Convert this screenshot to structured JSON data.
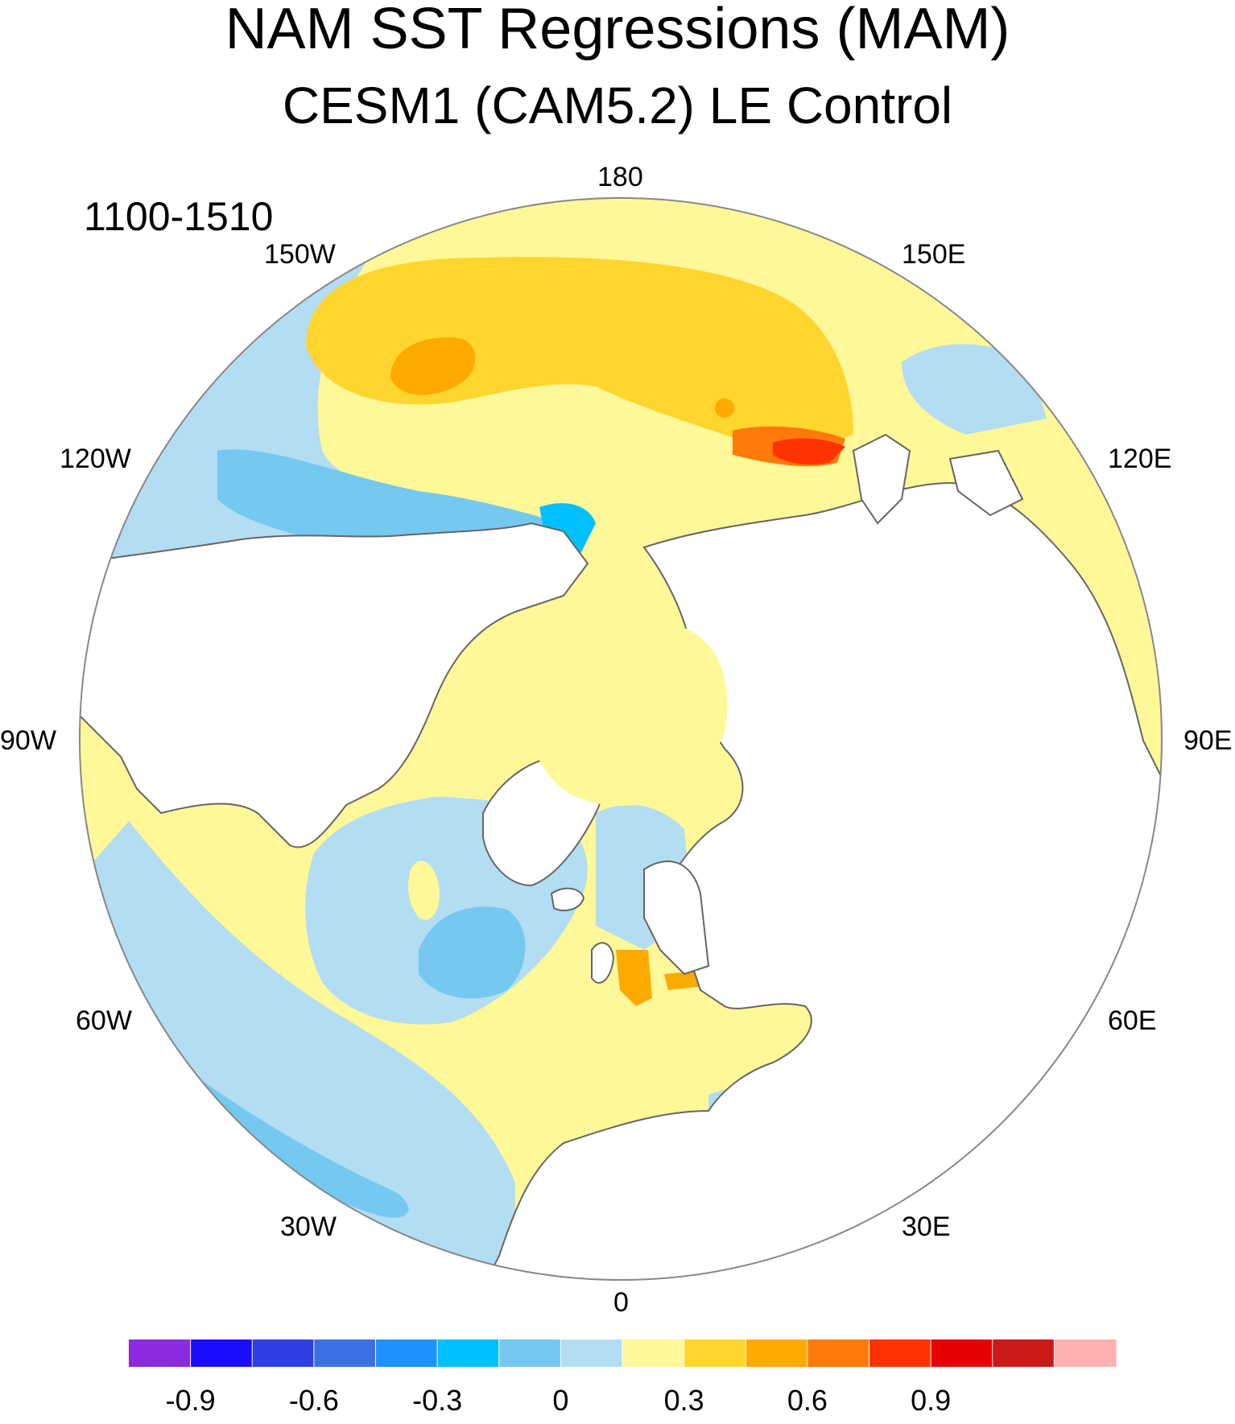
{
  "title": "NAM SST Regressions (MAM)",
  "subtitle": "CESM1 (CAM5.2) LE Control",
  "period": "1100-1510",
  "longitude_labels": {
    "lon_180": "180",
    "lon_150w": "150W",
    "lon_150e": "150E",
    "lon_120w": "120W",
    "lon_120e": "120E",
    "lon_90w": "90W",
    "lon_90e": "90E",
    "lon_60w": "60W",
    "lon_60e": "60E",
    "lon_30w": "30W",
    "lon_30e": "30E",
    "lon_0": "0"
  },
  "colorbar": {
    "tick_labels": [
      "-0.9",
      "-0.6",
      "-0.3",
      "0",
      "0.3",
      "0.6",
      "0.9"
    ],
    "colors": [
      "#8a2be2",
      "#1a0dff",
      "#2e3fe6",
      "#3a72e6",
      "#1e90ff",
      "#00bfff",
      "#75c8f0",
      "#b3ddf2",
      "#fff899",
      "#ffd52e",
      "#ffaa00",
      "#ff7a0a",
      "#ff3300",
      "#e60000",
      "#cc1a1a",
      "#ffb0b0"
    ]
  },
  "colors": {
    "land": "#ffffff",
    "coastline": "#666666",
    "neg_light": "#b3ddf2",
    "neg_mid": "#75c8f0",
    "neg_strong": "#00bfff",
    "pos_light": "#fff899",
    "pos_mid": "#ffd52e",
    "pos_strong": "#ffaa00",
    "pos_vstrong": "#ff7a0a",
    "pos_max": "#ff3300"
  }
}
